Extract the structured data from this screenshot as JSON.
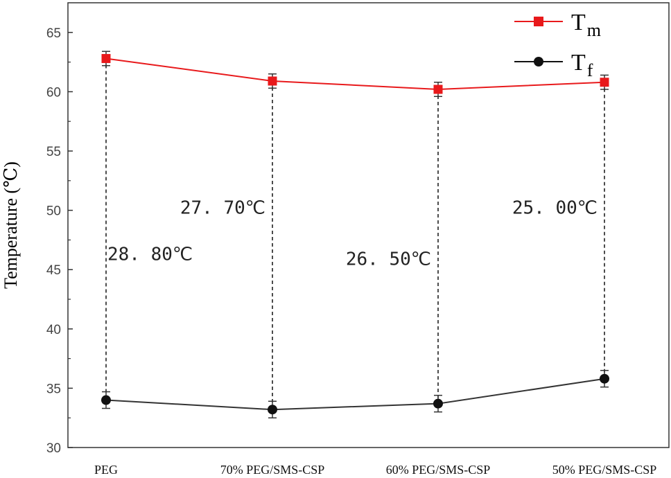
{
  "chart_data": {
    "type": "line",
    "title": "",
    "xlabel": "",
    "ylabel": "Temperature (℃)",
    "ylim": [
      30,
      67.5
    ],
    "yticks": [
      30,
      35,
      40,
      45,
      50,
      55,
      60,
      65
    ],
    "categories": [
      "PEG",
      "70% PEG/SMS-CSP",
      "60% PEG/SMS-CSP",
      "50% PEG/SMS-CSP"
    ],
    "series": [
      {
        "name": "Tm",
        "name_main": "T",
        "name_sub": "m",
        "color": "#e8191b",
        "marker": "square",
        "values": [
          62.8,
          60.9,
          60.2,
          60.8
        ],
        "errors": [
          0.6,
          0.6,
          0.6,
          0.6
        ]
      },
      {
        "name": "Tf",
        "name_main": "T",
        "name_sub": "f",
        "color": "#333333",
        "marker": "circle",
        "values": [
          34.0,
          33.2,
          33.7,
          35.8
        ],
        "errors": [
          0.7,
          0.7,
          0.7,
          0.7
        ]
      }
    ],
    "annotations": [
      {
        "category": 0,
        "text": "28. 80℃",
        "y": 45.8
      },
      {
        "category": 1,
        "text": "27. 70℃",
        "y": 49.7
      },
      {
        "category": 2,
        "text": "26. 50℃",
        "y": 45.4
      },
      {
        "category": 3,
        "text": "25. 00℃",
        "y": 49.7
      }
    ],
    "legend": "top-right",
    "grid": false
  }
}
